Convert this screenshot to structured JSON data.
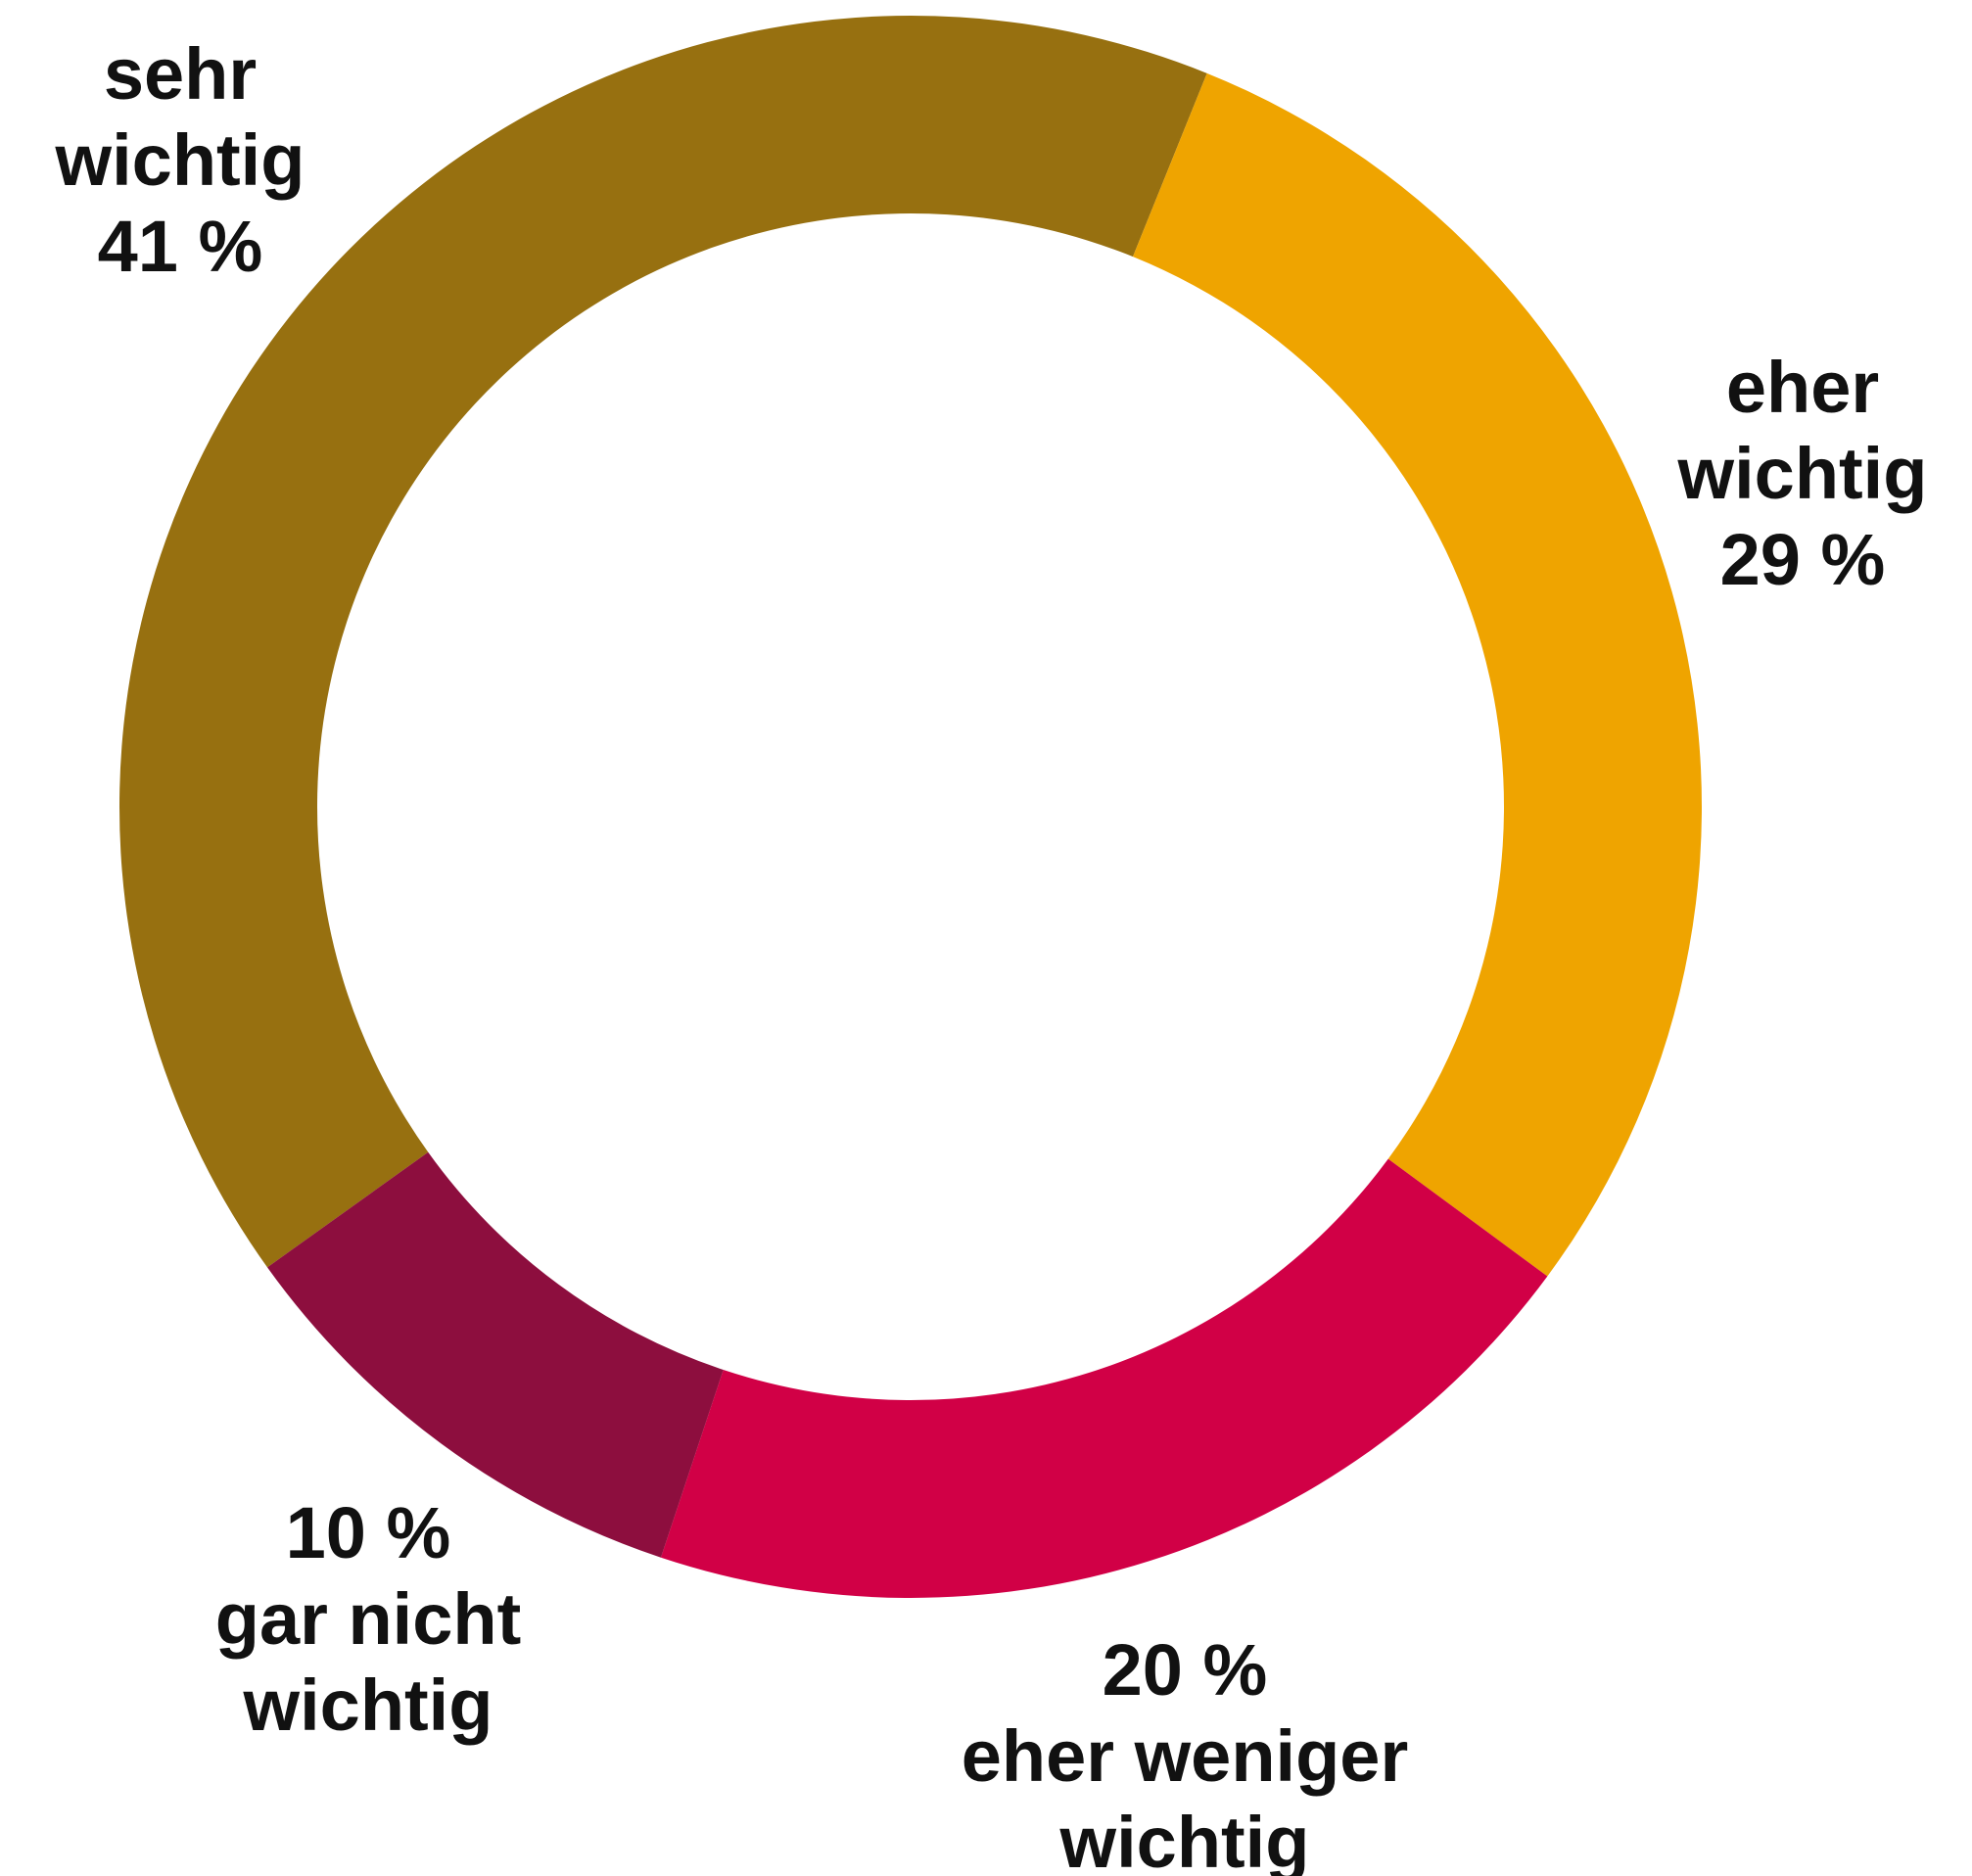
{
  "chart_data": {
    "type": "donut",
    "categories": [
      "sehr wichtig",
      "eher wichtig",
      "eher weniger wichtig",
      "gar nicht wichtig"
    ],
    "values": [
      41,
      29,
      20,
      10
    ],
    "value_labels": [
      "41 %",
      "29 %",
      "20 %",
      "10 %"
    ],
    "colors": [
      "#977010",
      "#efa400",
      "#d10046",
      "#8d0e3e"
    ]
  }
}
